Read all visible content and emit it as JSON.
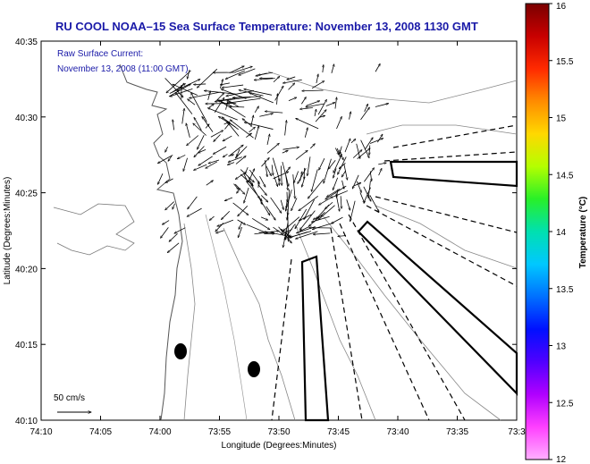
{
  "title": "RU COOL  NOAA–15  Sea Surface Temperature:  November 13, 2008 1130 GMT",
  "inset": {
    "line1": "Raw Surface Current:",
    "line2": "November 13, 2008 (11:00 GMT)"
  },
  "scale": {
    "label": "50 cm/s",
    "value_cms": 50
  },
  "x_axis": {
    "label": "Longitude (Degrees:Minutes)",
    "ticks": [
      "74:10",
      "74:05",
      "74:00",
      "73:55",
      "73:50",
      "73:45",
      "73:40",
      "73:35",
      "73:3"
    ]
  },
  "y_axis": {
    "label": "Latitude (Degrees:Minutes)",
    "ticks": [
      "40:35",
      "40:30",
      "40:25",
      "40:20",
      "40:15",
      "40:10"
    ]
  },
  "colorbar": {
    "label": "Temperature (°C)",
    "ticks": [
      "16",
      "15.5",
      "15",
      "14.5",
      "14",
      "13.5",
      "13",
      "12.5",
      "12"
    ],
    "colors": [
      "#7a0000",
      "#c80000",
      "#ff2a00",
      "#ff8c00",
      "#ffd800",
      "#b4ff00",
      "#28f028",
      "#00e0b0",
      "#00c8ff",
      "#0070ff",
      "#0010ff",
      "#5000ff",
      "#b000ff",
      "#ff40ff",
      "#ffb0ff"
    ]
  }
}
